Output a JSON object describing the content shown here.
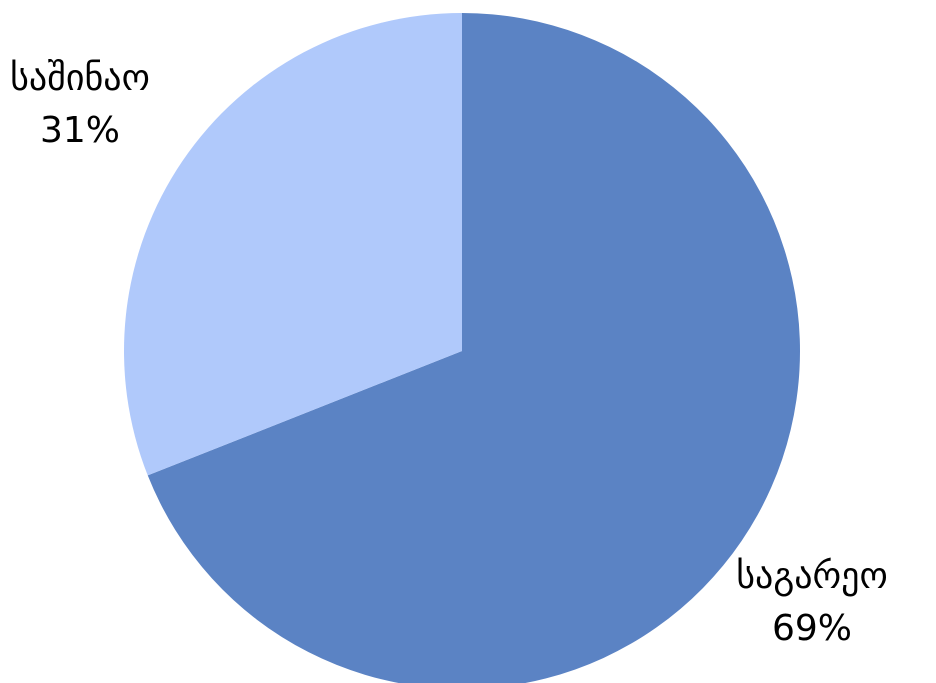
{
  "chart_data": {
    "type": "pie",
    "slices": [
      {
        "label": "საგარეო",
        "value": 69,
        "value_label": "69%",
        "color": "#5b83c4"
      },
      {
        "label": "საშინაო",
        "value": 31,
        "value_label": "31%",
        "color": "#b0c9fb"
      }
    ]
  }
}
